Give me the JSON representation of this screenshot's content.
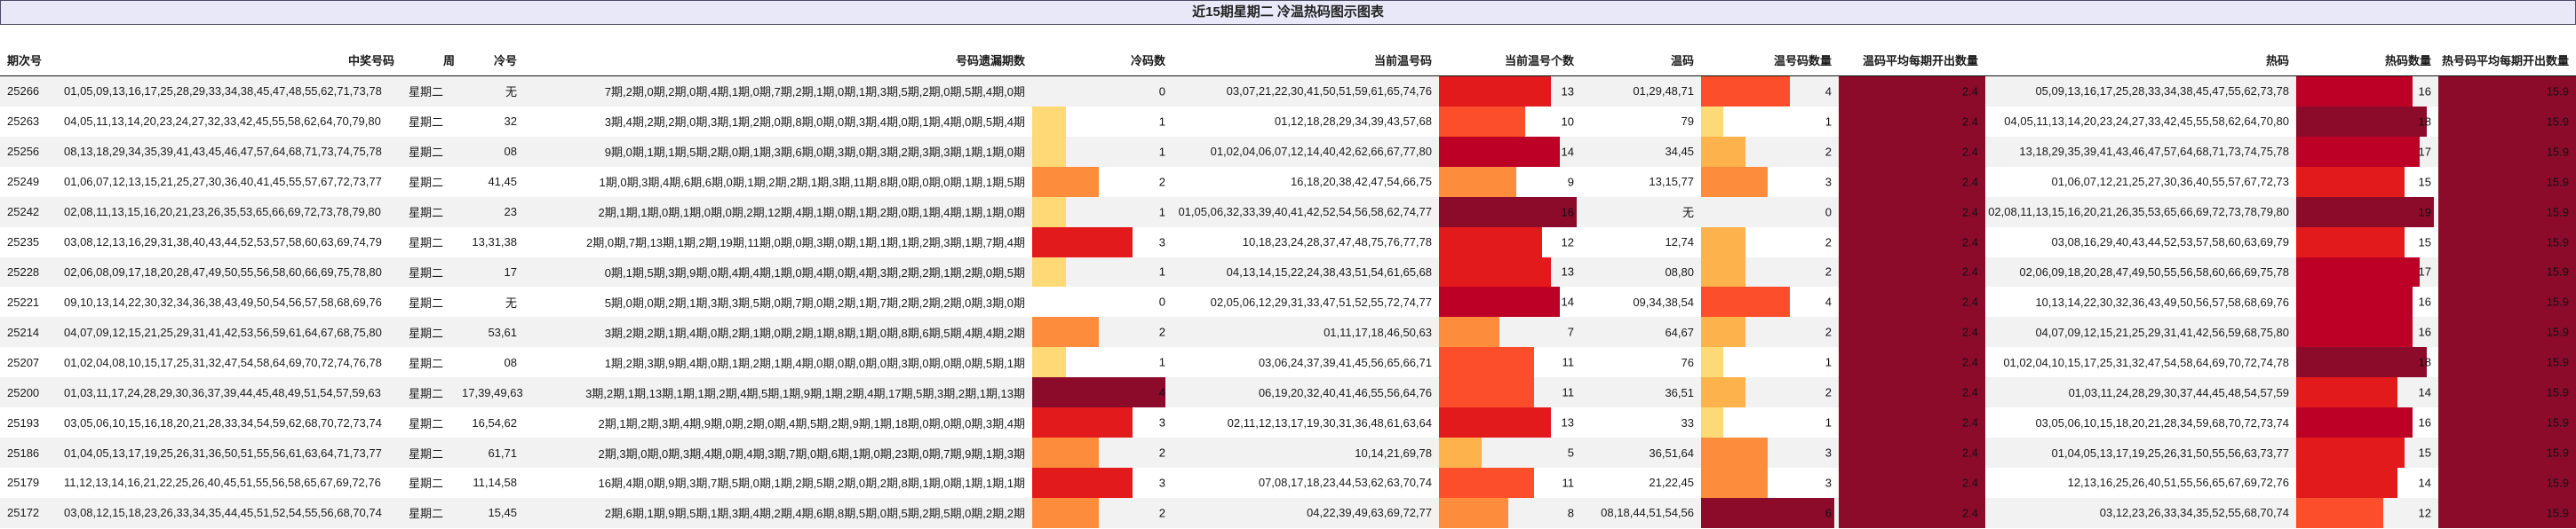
{
  "title": "近15期星期二 冷温热码图示图表",
  "columns": {
    "period": "期次号",
    "winning": "中奖号码",
    "week": "周",
    "cold_numbers": "冷号",
    "missing_periods": "号码遗漏期数",
    "cold_count": "冷码数",
    "warm_numbers": "当前温号码",
    "warm_count": "当前温号个数",
    "warm_codes": "温码",
    "warm_code_qty": "温号码数量",
    "warm_avg": "温码平均每期开出数量",
    "hot_codes": "热码",
    "hot_count": "热码数量",
    "hot_avg": "热号码平均每期开出数量"
  },
  "colors": {
    "ramp": [
      "#fed976",
      "#feb24c",
      "#fd8d3c",
      "#fc4e2a",
      "#e31a1c",
      "#bd0026",
      "#8c0b2b"
    ],
    "zebra": "#f2f2f2",
    "title_bg": "#e8e8f8",
    "title_border": "#4a4a66"
  },
  "maxima": {
    "cold": 4,
    "warm": 16,
    "warm_qty": 6,
    "hot": 19
  },
  "rows": [
    {
      "period": "25266",
      "winning": "01,05,09,13,16,17,25,28,29,33,34,38,45,47,48,55,62,71,73,78",
      "week": "星期二",
      "cold": "无",
      "missing": "7期,2期,0期,2期,0期,4期,1期,0期,7期,2期,1期,0期,1期,3期,5期,2期,0期,5期,4期,0期",
      "cold_n": 0,
      "warm": "03,07,21,22,30,41,50,51,59,61,65,74,76",
      "warm_n": 13,
      "wcodes": "01,29,48,71",
      "wq": 4,
      "wavg": "2.4",
      "hot": "05,09,13,16,17,25,28,33,34,38,45,47,55,62,73,78",
      "hot_n": 16,
      "havg": "15.9"
    },
    {
      "period": "25263",
      "winning": "04,05,11,13,14,20,23,24,27,32,33,42,45,55,58,62,64,70,79,80",
      "week": "星期二",
      "cold": "32",
      "missing": "3期,4期,2期,2期,0期,3期,1期,2期,0期,8期,0期,0期,3期,4期,0期,1期,4期,0期,5期,4期",
      "cold_n": 1,
      "warm": "01,12,18,28,29,34,39,43,57,68",
      "warm_n": 10,
      "wcodes": "79",
      "wq": 1,
      "wavg": "2.4",
      "hot": "04,05,11,13,14,20,23,24,27,33,42,45,55,58,62,64,70,80",
      "hot_n": 18,
      "havg": "15.9"
    },
    {
      "period": "25256",
      "winning": "08,13,18,29,34,35,39,41,43,45,46,47,57,64,68,71,73,74,75,78",
      "week": "星期二",
      "cold": "08",
      "missing": "9期,0期,1期,1期,5期,2期,0期,1期,3期,6期,0期,3期,0期,3期,2期,3期,3期,1期,1期,0期",
      "cold_n": 1,
      "warm": "01,02,04,06,07,12,14,40,42,62,66,67,77,80",
      "warm_n": 14,
      "wcodes": "34,45",
      "wq": 2,
      "wavg": "2.4",
      "hot": "13,18,29,35,39,41,43,46,47,57,64,68,71,73,74,75,78",
      "hot_n": 17,
      "havg": "15.9"
    },
    {
      "period": "25249",
      "winning": "01,06,07,12,13,15,21,25,27,30,36,40,41,45,55,57,67,72,73,77",
      "week": "星期二",
      "cold": "41,45",
      "missing": "1期,0期,3期,4期,6期,6期,0期,1期,2期,2期,1期,3期,11期,8期,0期,0期,0期,1期,1期,5期",
      "cold_n": 2,
      "warm": "16,18,20,38,42,47,54,66,75",
      "warm_n": 9,
      "wcodes": "13,15,77",
      "wq": 3,
      "wavg": "2.4",
      "hot": "01,06,07,12,21,25,27,30,36,40,55,57,67,72,73",
      "hot_n": 15,
      "havg": "15.9"
    },
    {
      "period": "25242",
      "winning": "02,08,11,13,15,16,20,21,23,26,35,53,65,66,69,72,73,78,79,80",
      "week": "星期二",
      "cold": "23",
      "missing": "2期,1期,1期,0期,1期,0期,0期,2期,12期,4期,1期,0期,1期,2期,0期,1期,4期,1期,1期,0期",
      "cold_n": 1,
      "warm": "01,05,06,32,33,39,40,41,42,52,54,56,58,62,74,77",
      "warm_n": 16,
      "wcodes": "无",
      "wq": 0,
      "wavg": "2.4",
      "hot": "02,08,11,13,15,16,20,21,26,35,53,65,66,69,72,73,78,79,80",
      "hot_n": 19,
      "havg": "15.9"
    },
    {
      "period": "25235",
      "winning": "03,08,12,13,16,29,31,38,40,43,44,52,53,57,58,60,63,69,74,79",
      "week": "星期二",
      "cold": "13,31,38",
      "missing": "2期,0期,7期,13期,1期,2期,19期,11期,0期,0期,3期,0期,1期,1期,1期,2期,3期,1期,7期,4期",
      "cold_n": 3,
      "warm": "10,18,23,24,28,37,47,48,75,76,77,78",
      "warm_n": 12,
      "wcodes": "12,74",
      "wq": 2,
      "wavg": "2.4",
      "hot": "03,08,16,29,40,43,44,52,53,57,58,60,63,69,79",
      "hot_n": 15,
      "havg": "15.9"
    },
    {
      "period": "25228",
      "winning": "02,06,08,09,17,18,20,28,47,49,50,55,56,58,60,66,69,75,78,80",
      "week": "星期二",
      "cold": "17",
      "missing": "0期,1期,5期,3期,9期,0期,4期,4期,1期,0期,4期,0期,4期,3期,2期,2期,1期,2期,0期,5期",
      "cold_n": 1,
      "warm": "04,13,14,15,22,24,38,43,51,54,61,65,68",
      "warm_n": 13,
      "wcodes": "08,80",
      "wq": 2,
      "wavg": "2.4",
      "hot": "02,06,09,18,20,28,47,49,50,55,56,58,60,66,69,75,78",
      "hot_n": 17,
      "havg": "15.9"
    },
    {
      "period": "25221",
      "winning": "09,10,13,14,22,30,32,34,36,38,43,49,50,54,56,57,58,68,69,76",
      "week": "星期二",
      "cold": "无",
      "missing": "5期,0期,0期,2期,1期,3期,3期,5期,0期,7期,0期,2期,1期,7期,2期,2期,2期,0期,3期,0期",
      "cold_n": 0,
      "warm": "02,05,06,12,29,31,33,47,51,52,55,72,74,77",
      "warm_n": 14,
      "wcodes": "09,34,38,54",
      "wq": 4,
      "wavg": "2.4",
      "hot": "10,13,14,22,30,32,36,43,49,50,56,57,58,68,69,76",
      "hot_n": 16,
      "havg": "15.9"
    },
    {
      "period": "25214",
      "winning": "04,07,09,12,15,21,25,29,31,41,42,53,56,59,61,64,67,68,75,80",
      "week": "星期二",
      "cold": "53,61",
      "missing": "3期,2期,2期,1期,4期,0期,2期,1期,0期,2期,1期,8期,1期,0期,8期,6期,5期,4期,4期,2期",
      "cold_n": 2,
      "warm": "01,11,17,18,46,50,63",
      "warm_n": 7,
      "wcodes": "64,67",
      "wq": 2,
      "wavg": "2.4",
      "hot": "04,07,09,12,15,21,25,29,31,41,42,56,59,68,75,80",
      "hot_n": 16,
      "havg": "15.9"
    },
    {
      "period": "25207",
      "winning": "01,02,04,08,10,15,17,25,31,32,47,54,58,64,69,70,72,74,76,78",
      "week": "星期二",
      "cold": "08",
      "missing": "1期,2期,3期,9期,4期,0期,1期,2期,1期,4期,0期,0期,0期,0期,3期,0期,0期,0期,5期,1期",
      "cold_n": 1,
      "warm": "03,06,24,37,39,41,45,56,65,66,71",
      "warm_n": 11,
      "wcodes": "76",
      "wq": 1,
      "wavg": "2.4",
      "hot": "01,02,04,10,15,17,25,31,32,47,54,58,64,69,70,72,74,78",
      "hot_n": 18,
      "havg": "15.9"
    },
    {
      "period": "25200",
      "winning": "01,03,11,17,24,28,29,30,36,37,39,44,45,48,49,51,54,57,59,63",
      "week": "星期二",
      "cold": "17,39,49,63",
      "missing": "3期,2期,1期,13期,1期,1期,2期,4期,5期,1期,9期,1期,2期,4期,17期,5期,3期,2期,1期,13期",
      "cold_n": 4,
      "warm": "06,19,20,32,40,41,46,55,56,64,76",
      "warm_n": 11,
      "wcodes": "36,51",
      "wq": 2,
      "wavg": "2.4",
      "hot": "01,03,11,24,28,29,30,37,44,45,48,54,57,59",
      "hot_n": 14,
      "havg": "15.9"
    },
    {
      "period": "25193",
      "winning": "03,05,06,10,15,16,18,20,21,28,33,34,54,59,62,68,70,72,73,74",
      "week": "星期二",
      "cold": "16,54,62",
      "missing": "2期,1期,2期,3期,4期,9期,0期,2期,0期,4期,5期,2期,9期,1期,18期,0期,0期,0期,3期,4期",
      "cold_n": 3,
      "warm": "02,11,12,13,17,19,30,31,36,48,61,63,64",
      "warm_n": 13,
      "wcodes": "33",
      "wq": 1,
      "wavg": "2.4",
      "hot": "03,05,06,10,15,18,20,21,28,34,59,68,70,72,73,74",
      "hot_n": 16,
      "havg": "15.9"
    },
    {
      "period": "25186",
      "winning": "01,04,05,13,17,19,25,26,31,36,50,51,55,56,61,63,64,71,73,77",
      "week": "星期二",
      "cold": "61,71",
      "missing": "2期,3期,0期,0期,3期,4期,0期,4期,3期,7期,0期,6期,1期,0期,23期,0期,7期,9期,1期,3期",
      "cold_n": 2,
      "warm": "10,14,21,69,78",
      "warm_n": 5,
      "wcodes": "36,51,64",
      "wq": 3,
      "wavg": "2.4",
      "hot": "01,04,05,13,17,19,25,26,31,50,55,56,63,73,77",
      "hot_n": 15,
      "havg": "15.9"
    },
    {
      "period": "25179",
      "winning": "11,12,13,14,16,21,22,25,26,40,45,51,55,56,58,65,67,69,72,76",
      "week": "星期二",
      "cold": "11,14,58",
      "missing": "16期,4期,0期,9期,3期,7期,5期,0期,1期,2期,5期,2期,0期,2期,8期,1期,0期,1期,1期,1期",
      "cold_n": 3,
      "warm": "07,08,17,18,23,44,53,62,63,70,74",
      "warm_n": 11,
      "wcodes": "21,22,45",
      "wq": 3,
      "wavg": "2.4",
      "hot": "12,13,16,25,26,40,51,55,56,65,67,69,72,76",
      "hot_n": 14,
      "havg": "15.9"
    },
    {
      "period": "25172",
      "winning": "03,08,12,15,18,23,26,33,34,35,44,45,51,52,54,55,56,68,70,74",
      "week": "星期二",
      "cold": "15,45",
      "missing": "2期,6期,1期,9期,5期,1期,3期,4期,2期,4期,6期,8期,5期,0期,5期,2期,5期,0期,2期,2期",
      "cold_n": 2,
      "warm": "04,22,39,49,63,69,72,77",
      "warm_n": 8,
      "wcodes": "08,18,44,51,54,56",
      "wq": 6,
      "wavg": "2.4",
      "hot": "03,12,23,26,33,34,35,52,55,68,70,74",
      "hot_n": 12,
      "havg": "15.9"
    }
  ]
}
